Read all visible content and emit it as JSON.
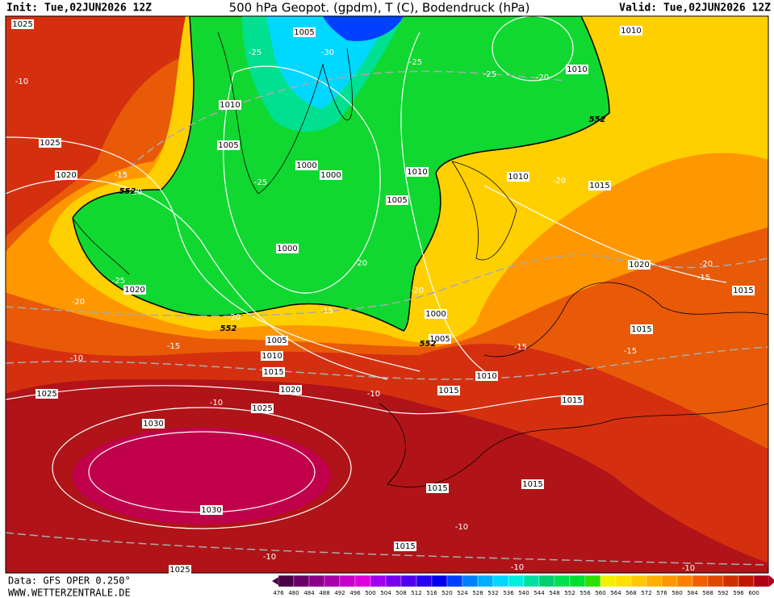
{
  "header": {
    "init": "Init: Tue,02JUN2026 12Z",
    "title": "500 hPa Geopot. (gpdm), T (C), Bodendruck (hPa)",
    "valid": "Valid: Tue,02JUN2026 12Z"
  },
  "footer": {
    "source": "Data: GFS OPER 0.250°",
    "website": "WWW.WETTERZENTRALE.DE"
  },
  "colorbar": {
    "levels": [
      476,
      480,
      484,
      488,
      492,
      496,
      500,
      504,
      508,
      512,
      516,
      520,
      524,
      528,
      532,
      536,
      540,
      544,
      548,
      552,
      556,
      560,
      564,
      568,
      572,
      576,
      580,
      584,
      588,
      592,
      596,
      600
    ],
    "colors": [
      "#4b0046",
      "#6a006a",
      "#8a008a",
      "#a800a8",
      "#c800c8",
      "#e000e0",
      "#a000f0",
      "#7800f0",
      "#5000f0",
      "#2800f0",
      "#0000f0",
      "#0040ff",
      "#0080ff",
      "#00b0ff",
      "#00d8ff",
      "#00f0e0",
      "#00e0a0",
      "#00d070",
      "#00e050",
      "#00e030",
      "#30e000",
      "#f0f000",
      "#ffe000",
      "#ffc800",
      "#ffb000",
      "#ff9800",
      "#ff8000",
      "#f06000",
      "#e04800",
      "#d03000",
      "#c01800",
      "#b00018"
    ]
  },
  "map": {
    "isobar_labels": [
      1025,
      1005,
      1010,
      1010,
      1010,
      1025,
      1005,
      1000,
      1000,
      1020,
      1010,
      1010,
      1015,
      1005,
      1000,
      1020,
      1020,
      1015,
      1000,
      1015,
      1005,
      1005,
      1010,
      1015,
      1010,
      1020,
      1015,
      1025,
      1025,
      1015,
      1030,
      1015,
      1015,
      1030,
      1015,
      1025
    ],
    "temperature_labels": [
      -10,
      -25,
      -30,
      -25,
      -25,
      -20,
      -15,
      -20,
      -25,
      -20,
      -20,
      -25,
      -20,
      -20,
      -15,
      -20,
      -20,
      -15,
      -15,
      -15,
      -15,
      -10,
      -10,
      -10,
      -10,
      -10,
      -10,
      -10
    ],
    "geopotential_labels": [
      552,
      552,
      552,
      552
    ]
  }
}
